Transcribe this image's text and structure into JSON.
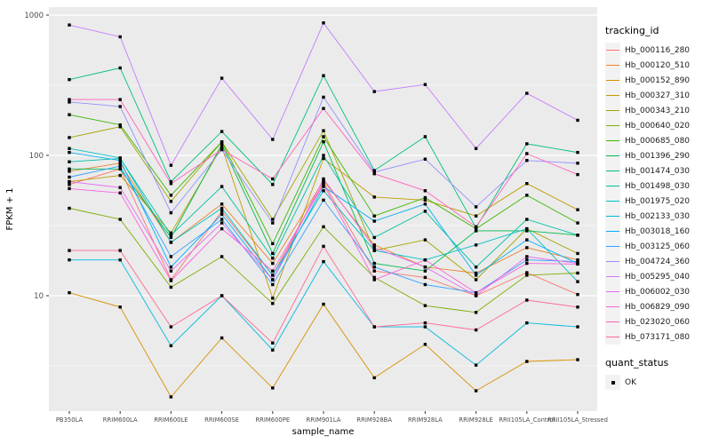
{
  "chart_data": {
    "type": "line",
    "title": "",
    "xlabel": "sample_name",
    "ylabel": "FPKM + 1",
    "y_scale": "log10",
    "ylim": [
      1.5,
      1200
    ],
    "yticks": [
      10,
      100,
      1000
    ],
    "ytick_labels": [
      "10",
      "100",
      "1000"
    ],
    "minor_gridlines": [
      3.162,
      31.62,
      316.2
    ],
    "grid": "on",
    "legend_position": "right",
    "panel_bg": "#ebebeb",
    "grid_color": "#ffffff",
    "axis_text_color": "#4d4d4d",
    "point_color": "#000000",
    "categories": [
      "PB350LA",
      "RRIM600LA",
      "RRIM600LE",
      "RRIM600SE",
      "RRIM600PE",
      "RRIM901LA",
      "RRIM928BA",
      "RRIM928LA",
      "RRIM928LE",
      "RRII105LA_Control",
      "RRII105LA_Stressed"
    ],
    "series": [
      {
        "name": "Hb_000116_280",
        "color": "#F8766D",
        "values": [
          62,
          80,
          13,
          40,
          14,
          64,
          15,
          13.5,
          10,
          14.6,
          10.2
        ]
      },
      {
        "name": "Hb_000120_510",
        "color": "#EA8331",
        "values": [
          77,
          88,
          24,
          45,
          17,
          66,
          23,
          16,
          14.5,
          22,
          18
        ]
      },
      {
        "name": "Hb_000152_890",
        "color": "#D89000",
        "values": [
          10.5,
          8.3,
          1.9,
          5.0,
          2.2,
          8.7,
          2.6,
          4.5,
          2.1,
          3.4,
          3.5
        ]
      },
      {
        "name": "Hb_000327_310",
        "color": "#C09B00",
        "values": [
          65,
          72,
          28,
          115,
          9.6,
          95,
          50.5,
          48,
          37,
          63,
          41
        ]
      },
      {
        "name": "Hb_000343_210",
        "color": "#A3A500",
        "values": [
          134,
          160,
          47,
          125,
          35,
          150,
          21,
          25,
          13,
          30,
          20
        ]
      },
      {
        "name": "Hb_000640_020",
        "color": "#7CAE00",
        "values": [
          42,
          35,
          11.5,
          19,
          8.8,
          31,
          13.5,
          8.5,
          7.6,
          14,
          14.5
        ]
      },
      {
        "name": "Hb_000685_080",
        "color": "#39B600",
        "values": [
          195,
          165,
          52,
          125,
          23.5,
          136,
          37,
          50,
          30,
          52,
          33
        ]
      },
      {
        "name": "Hb_001396_290",
        "color": "#00BB4E",
        "values": [
          80,
          80,
          26,
          120,
          20,
          125,
          17,
          15,
          29,
          29,
          27
        ]
      },
      {
        "name": "Hb_001474_030",
        "color": "#00BF7D",
        "values": [
          347,
          420,
          65,
          148,
          62,
          370,
          78,
          136,
          30.5,
          121,
          105
        ]
      },
      {
        "name": "Hb_001498_030",
        "color": "#00C1A3",
        "values": [
          90,
          95,
          27,
          60,
          18.5,
          100,
          26,
          40,
          16,
          35,
          27
        ]
      },
      {
        "name": "Hb_001975_020",
        "color": "#00BFC4",
        "values": [
          112,
          96,
          24,
          42,
          14,
          56,
          21,
          18,
          23,
          30,
          12.6
        ]
      },
      {
        "name": "Hb_002133_030",
        "color": "#00BAE0",
        "values": [
          18,
          18,
          4.4,
          10,
          4.1,
          17.5,
          6.0,
          6.0,
          3.2,
          6.4,
          6.0
        ]
      },
      {
        "name": "Hb_003018_160",
        "color": "#00B0F6",
        "values": [
          105,
          92,
          16,
          38,
          13,
          60,
          34,
          45,
          14,
          25,
          17
        ]
      },
      {
        "name": "Hb_003125_060",
        "color": "#35A2FF",
        "values": [
          70,
          84,
          19,
          35,
          12,
          48,
          16,
          12,
          10.5,
          18,
          17.5
        ]
      },
      {
        "name": "Hb_004724_360",
        "color": "#9590FF",
        "values": [
          240,
          223,
          39,
          110,
          33,
          260,
          76,
          94,
          43,
          92,
          88
        ]
      },
      {
        "name": "Hb_005295_040",
        "color": "#C77CFF",
        "values": [
          850,
          700,
          85,
          355,
          130,
          880,
          285,
          320,
          112,
          277,
          178
        ]
      },
      {
        "name": "Hb_006002_030",
        "color": "#E76BF3",
        "values": [
          65,
          59,
          15,
          33,
          13,
          68,
          22,
          16,
          10,
          19,
          17
        ]
      },
      {
        "name": "Hb_006829_090",
        "color": "#FA62DB",
        "values": [
          58,
          54,
          12.8,
          30,
          15,
          62,
          13,
          18,
          10.5,
          17,
          16.8
        ]
      },
      {
        "name": "Hb_023020_060",
        "color": "#FF62BC",
        "values": [
          250,
          250,
          63,
          110,
          68,
          216,
          74,
          56,
          31,
          103,
          73
        ]
      },
      {
        "name": "Hb_073171_080",
        "color": "#FF6A98",
        "values": [
          21,
          21,
          6.0,
          10,
          4.6,
          22.5,
          6.0,
          6.4,
          5.7,
          9.3,
          8.3
        ]
      }
    ]
  },
  "legend": {
    "title": "tracking_id"
  },
  "legend2": {
    "title": "quant_status",
    "items": [
      {
        "label": "OK"
      }
    ]
  }
}
